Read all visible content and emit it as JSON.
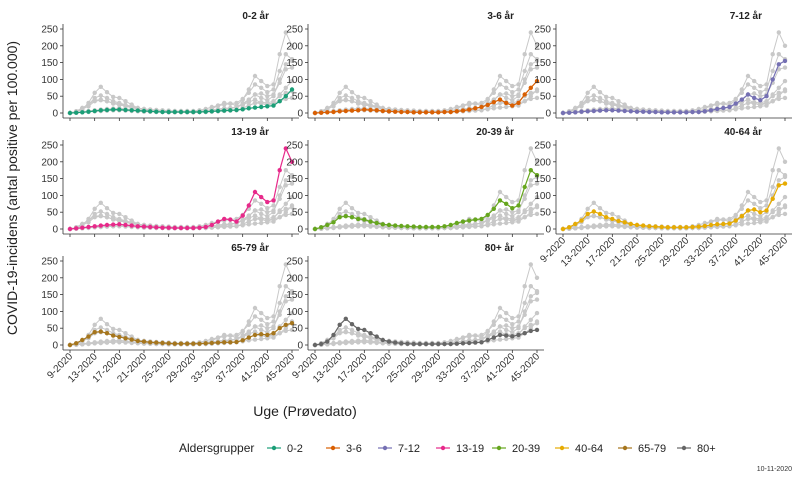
{
  "chart_data": {
    "type": "line",
    "ylabel": "COVID-19-incidens (antal positive per 100.000)",
    "xlabel": "Uge (Prøvedato)",
    "ylim": [
      0,
      250
    ],
    "yticks": [
      0,
      50,
      100,
      150,
      200,
      250
    ],
    "xticks": [
      "9-2020",
      "13-2020",
      "17-2020",
      "21-2020",
      "25-2020",
      "29-2020",
      "33-2020",
      "37-2020",
      "41-2020",
      "45-2020"
    ],
    "legend_title": "Aldersgrupper",
    "legend_position": "bottom",
    "date_note": "10-11-2020",
    "weeks": [
      "9-2020",
      "10-2020",
      "11-2020",
      "12-2020",
      "13-2020",
      "14-2020",
      "15-2020",
      "16-2020",
      "17-2020",
      "18-2020",
      "19-2020",
      "20-2020",
      "21-2020",
      "22-2020",
      "23-2020",
      "24-2020",
      "25-2020",
      "26-2020",
      "27-2020",
      "28-2020",
      "29-2020",
      "30-2020",
      "31-2020",
      "32-2020",
      "33-2020",
      "34-2020",
      "35-2020",
      "36-2020",
      "37-2020",
      "38-2020",
      "39-2020",
      "40-2020",
      "41-2020",
      "42-2020",
      "43-2020",
      "44-2020",
      "45-2020"
    ],
    "panel_titles": [
      "0-2 år",
      "3-6 år",
      "7-12 år",
      "13-19 år",
      "20-39 år",
      "40-64 år",
      "65-79 år",
      "80+ år"
    ],
    "series": [
      {
        "name": "0-2",
        "color": "#1b9e77",
        "panel": "0-2 år",
        "values": [
          0,
          1,
          2,
          4,
          6,
          8,
          9,
          10,
          10,
          9,
          8,
          7,
          6,
          5,
          4,
          3,
          3,
          3,
          3,
          3,
          3,
          3,
          4,
          5,
          6,
          7,
          8,
          9,
          11,
          14,
          16,
          18,
          20,
          22,
          35,
          50,
          70
        ]
      },
      {
        "name": "3-6",
        "color": "#d95f02",
        "panel": "3-6 år",
        "values": [
          0,
          1,
          2,
          3,
          5,
          6,
          7,
          8,
          10,
          9,
          8,
          6,
          5,
          4,
          3,
          3,
          2,
          2,
          2,
          2,
          2,
          3,
          3,
          5,
          7,
          10,
          14,
          18,
          24,
          32,
          40,
          30,
          22,
          30,
          55,
          75,
          95
        ]
      },
      {
        "name": "7-12",
        "color": "#7570b3",
        "panel": "7-12 år",
        "values": [
          0,
          1,
          2,
          4,
          5,
          6,
          7,
          8,
          8,
          7,
          6,
          5,
          4,
          4,
          3,
          3,
          2,
          2,
          2,
          2,
          2,
          3,
          3,
          5,
          8,
          12,
          15,
          18,
          28,
          40,
          55,
          45,
          38,
          50,
          100,
          145,
          155
        ]
      },
      {
        "name": "13-19",
        "color": "#e7298a",
        "panel": "13-19 år",
        "values": [
          0,
          2,
          4,
          6,
          8,
          10,
          12,
          13,
          14,
          12,
          10,
          8,
          7,
          6,
          5,
          4,
          4,
          3,
          3,
          3,
          3,
          4,
          6,
          12,
          22,
          30,
          28,
          22,
          40,
          70,
          110,
          95,
          80,
          85,
          175,
          240,
          200
        ]
      },
      {
        "name": "20-39",
        "color": "#66a61e",
        "panel": "20-39 år",
        "values": [
          0,
          5,
          12,
          20,
          35,
          38,
          35,
          30,
          28,
          22,
          18,
          14,
          12,
          10,
          9,
          8,
          7,
          6,
          6,
          6,
          6,
          8,
          12,
          18,
          22,
          25,
          28,
          30,
          42,
          60,
          85,
          75,
          62,
          70,
          125,
          175,
          160
        ]
      },
      {
        "name": "40-64",
        "color": "#e6ab02",
        "panel": "40-64 år",
        "values": [
          0,
          5,
          15,
          25,
          45,
          52,
          45,
          35,
          30,
          24,
          20,
          15,
          12,
          10,
          8,
          7,
          6,
          5,
          5,
          5,
          5,
          6,
          7,
          9,
          12,
          14,
          15,
          16,
          25,
          38,
          55,
          58,
          50,
          55,
          90,
          130,
          135
        ]
      },
      {
        "name": "65-79",
        "color": "#a6761d",
        "panel": "65-79 år",
        "values": [
          0,
          5,
          15,
          25,
          38,
          40,
          35,
          28,
          24,
          20,
          16,
          12,
          10,
          8,
          7,
          6,
          5,
          4,
          4,
          4,
          4,
          4,
          5,
          6,
          7,
          8,
          8,
          9,
          14,
          22,
          30,
          32,
          30,
          35,
          50,
          60,
          65
        ]
      },
      {
        "name": "80+",
        "color": "#666666",
        "panel": "80+ år",
        "values": [
          0,
          3,
          10,
          30,
          60,
          78,
          62,
          48,
          45,
          35,
          25,
          15,
          10,
          7,
          5,
          4,
          3,
          3,
          3,
          3,
          3,
          3,
          3,
          4,
          5,
          6,
          7,
          8,
          15,
          22,
          30,
          28,
          26,
          30,
          35,
          42,
          45
        ]
      }
    ]
  }
}
